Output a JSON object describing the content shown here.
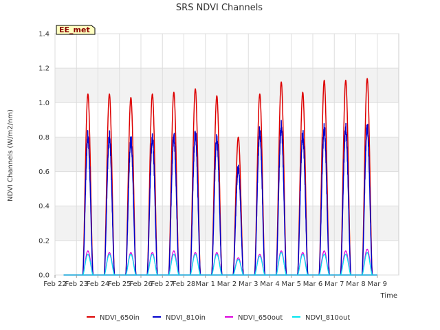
{
  "chart_data": {
    "type": "line",
    "title": "SRS NDVI Channels",
    "xlabel": "Time",
    "ylabel": "NDVI Channels (W/m2/nm)",
    "ylim": [
      0,
      1.4
    ],
    "yticks": [
      "0.0",
      "0.2",
      "0.4",
      "0.6",
      "0.8",
      "1.0",
      "1.2",
      "1.4"
    ],
    "xlim": [
      "2024-02-22",
      "2024-03-09"
    ],
    "xticks": [
      "Feb 22",
      "Feb 23",
      "Feb 24",
      "Feb 25",
      "Feb 26",
      "Feb 27",
      "Feb 28",
      "Mar 1",
      "Mar 2",
      "Mar 3",
      "Mar 4",
      "Mar 5",
      "Mar 6",
      "Mar 7",
      "Mar 8",
      "Mar 9"
    ],
    "grid": true,
    "legend_position": "bottom",
    "annotation": "EE_met",
    "series": [
      {
        "name": "NDVI_650in",
        "color": "#dd0000",
        "daily_peaks": [
          {
            "date": "2024-02-23",
            "peak": 1.05
          },
          {
            "date": "2024-02-24",
            "peak": 1.05
          },
          {
            "date": "2024-02-25",
            "peak": 1.03
          },
          {
            "date": "2024-02-26",
            "peak": 1.05
          },
          {
            "date": "2024-02-27",
            "peak": 1.06
          },
          {
            "date": "2024-02-28",
            "peak": 1.08
          },
          {
            "date": "2024-02-29",
            "peak": 1.04
          },
          {
            "date": "2024-03-01",
            "peak": 0.8
          },
          {
            "date": "2024-03-02",
            "peak": 1.05
          },
          {
            "date": "2024-03-03",
            "peak": 1.12
          },
          {
            "date": "2024-03-04",
            "peak": 1.06
          },
          {
            "date": "2024-03-05",
            "peak": 1.13
          },
          {
            "date": "2024-03-06",
            "peak": 1.13
          },
          {
            "date": "2024-03-07",
            "peak": 1.14
          }
        ]
      },
      {
        "name": "NDVI_810in",
        "color": "#0000cc",
        "daily_peaks": [
          {
            "date": "2024-02-23",
            "peak": 0.84
          },
          {
            "date": "2024-02-24",
            "peak": 0.84
          },
          {
            "date": "2024-02-25",
            "peak": 0.82
          },
          {
            "date": "2024-02-26",
            "peak": 0.83
          },
          {
            "date": "2024-02-27",
            "peak": 0.84
          },
          {
            "date": "2024-02-28",
            "peak": 0.86
          },
          {
            "date": "2024-02-29",
            "peak": 0.83
          },
          {
            "date": "2024-03-01",
            "peak": 0.65
          },
          {
            "date": "2024-03-02",
            "peak": 0.87
          },
          {
            "date": "2024-03-03",
            "peak": 0.9
          },
          {
            "date": "2024-03-04",
            "peak": 0.85
          },
          {
            "date": "2024-03-05",
            "peak": 0.89
          },
          {
            "date": "2024-03-06",
            "peak": 0.89
          },
          {
            "date": "2024-03-07",
            "peak": 0.9
          }
        ]
      },
      {
        "name": "NDVI_650out",
        "color": "#dd00dd",
        "daily_peaks": [
          {
            "date": "2024-02-23",
            "peak": 0.14
          },
          {
            "date": "2024-02-24",
            "peak": 0.13
          },
          {
            "date": "2024-02-25",
            "peak": 0.13
          },
          {
            "date": "2024-02-26",
            "peak": 0.13
          },
          {
            "date": "2024-02-27",
            "peak": 0.14
          },
          {
            "date": "2024-02-28",
            "peak": 0.13
          },
          {
            "date": "2024-02-29",
            "peak": 0.13
          },
          {
            "date": "2024-03-01",
            "peak": 0.1
          },
          {
            "date": "2024-03-02",
            "peak": 0.12
          },
          {
            "date": "2024-03-03",
            "peak": 0.14
          },
          {
            "date": "2024-03-04",
            "peak": 0.13
          },
          {
            "date": "2024-03-05",
            "peak": 0.14
          },
          {
            "date": "2024-03-06",
            "peak": 0.14
          },
          {
            "date": "2024-03-07",
            "peak": 0.15
          }
        ]
      },
      {
        "name": "NDVI_810out",
        "color": "#00e5ee",
        "daily_peaks": [
          {
            "date": "2024-02-23",
            "peak": 0.12
          },
          {
            "date": "2024-02-24",
            "peak": 0.12
          },
          {
            "date": "2024-02-25",
            "peak": 0.12
          },
          {
            "date": "2024-02-26",
            "peak": 0.12
          },
          {
            "date": "2024-02-27",
            "peak": 0.12
          },
          {
            "date": "2024-02-28",
            "peak": 0.12
          },
          {
            "date": "2024-02-29",
            "peak": 0.12
          },
          {
            "date": "2024-03-01",
            "peak": 0.09
          },
          {
            "date": "2024-03-02",
            "peak": 0.11
          },
          {
            "date": "2024-03-03",
            "peak": 0.13
          },
          {
            "date": "2024-03-04",
            "peak": 0.12
          },
          {
            "date": "2024-03-05",
            "peak": 0.12
          },
          {
            "date": "2024-03-06",
            "peak": 0.12
          },
          {
            "date": "2024-03-07",
            "peak": 0.13
          }
        ]
      }
    ]
  }
}
